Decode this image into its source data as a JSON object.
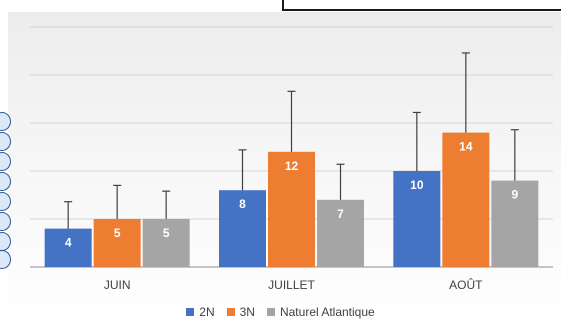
{
  "chart_data": {
    "type": "bar",
    "categories": [
      "JUIN",
      "JUILLET",
      "AOÛT"
    ],
    "series": [
      {
        "name": "2N",
        "color": "#4472c4",
        "values": [
          4,
          8,
          10
        ],
        "error_upper": [
          2.8,
          4.2,
          6.1
        ]
      },
      {
        "name": "3N",
        "color": "#ed7d31",
        "values": [
          5,
          12,
          14
        ],
        "error_upper": [
          3.5,
          6.3,
          8.3
        ]
      },
      {
        "name": "Naturel Atlantique",
        "color": "#a5a5a5",
        "values": [
          5,
          7,
          9
        ],
        "error_upper": [
          2.9,
          3.7,
          5.3
        ]
      }
    ],
    "ylim": [
      0,
      25
    ],
    "grid": true,
    "legend_position": "bottom",
    "data_labels": true
  }
}
